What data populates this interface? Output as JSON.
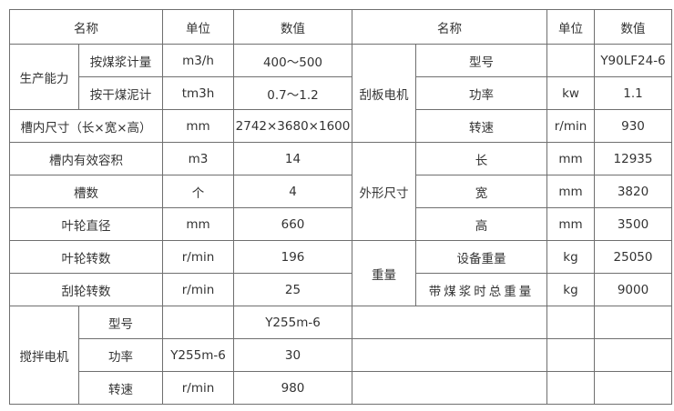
{
  "header": {
    "name": "名称",
    "unit": "单位",
    "value": "数值",
    "name2": "名称",
    "unit2": "单位",
    "value2": "数值"
  },
  "left": {
    "capacity": {
      "label": "生产能力",
      "rows": [
        {
          "name": "按煤浆计量",
          "unit": "m3/h",
          "value": "400～500"
        },
        {
          "name": "按干煤泥计",
          "unit": "tm3h",
          "value": "0.7～1.2"
        }
      ]
    },
    "rows": [
      {
        "name": "槽内尺寸（长×宽×高）",
        "unit": "mm",
        "value": "2742×3680×1600"
      },
      {
        "name": "槽内有效容积",
        "unit": "m3",
        "value": "14"
      },
      {
        "name": "槽数",
        "unit": "个",
        "value": "4"
      },
      {
        "name": "叶轮直径",
        "unit": "mm",
        "value": "660"
      },
      {
        "name": "叶轮转数",
        "unit": "r/min",
        "value": "196"
      },
      {
        "name": "刮轮转数",
        "unit": "r/min",
        "value": "25"
      }
    ],
    "mixer": {
      "label": "搅拌电机",
      "rows": [
        {
          "name": "型号",
          "unit": "",
          "value": "Y255m-6"
        },
        {
          "name": "功率",
          "unit": "Y255m-6",
          "value": "30"
        },
        {
          "name": "转速",
          "unit": "r/min",
          "value": "980"
        }
      ]
    }
  },
  "right": {
    "scraper": {
      "label": "刮板电机",
      "rows": [
        {
          "name": "型号",
          "unit": "",
          "value": "Y90LF24-6"
        },
        {
          "name": "功率",
          "unit": "kw",
          "value": "1.1"
        },
        {
          "name": "转速",
          "unit": "r/min",
          "value": "930"
        }
      ]
    },
    "dims": {
      "label": "外形尺寸",
      "rows": [
        {
          "name": "长",
          "unit": "mm",
          "value": "12935"
        },
        {
          "name": "宽",
          "unit": "mm",
          "value": "3820"
        },
        {
          "name": "高",
          "unit": "mm",
          "value": "3500"
        }
      ]
    },
    "weight": {
      "label": "重量",
      "rows": [
        {
          "name": "设备重量",
          "unit": "kg",
          "value": "25050"
        },
        {
          "name": "带煤浆时总重量",
          "unit": "kg",
          "value": "9000"
        }
      ]
    }
  }
}
